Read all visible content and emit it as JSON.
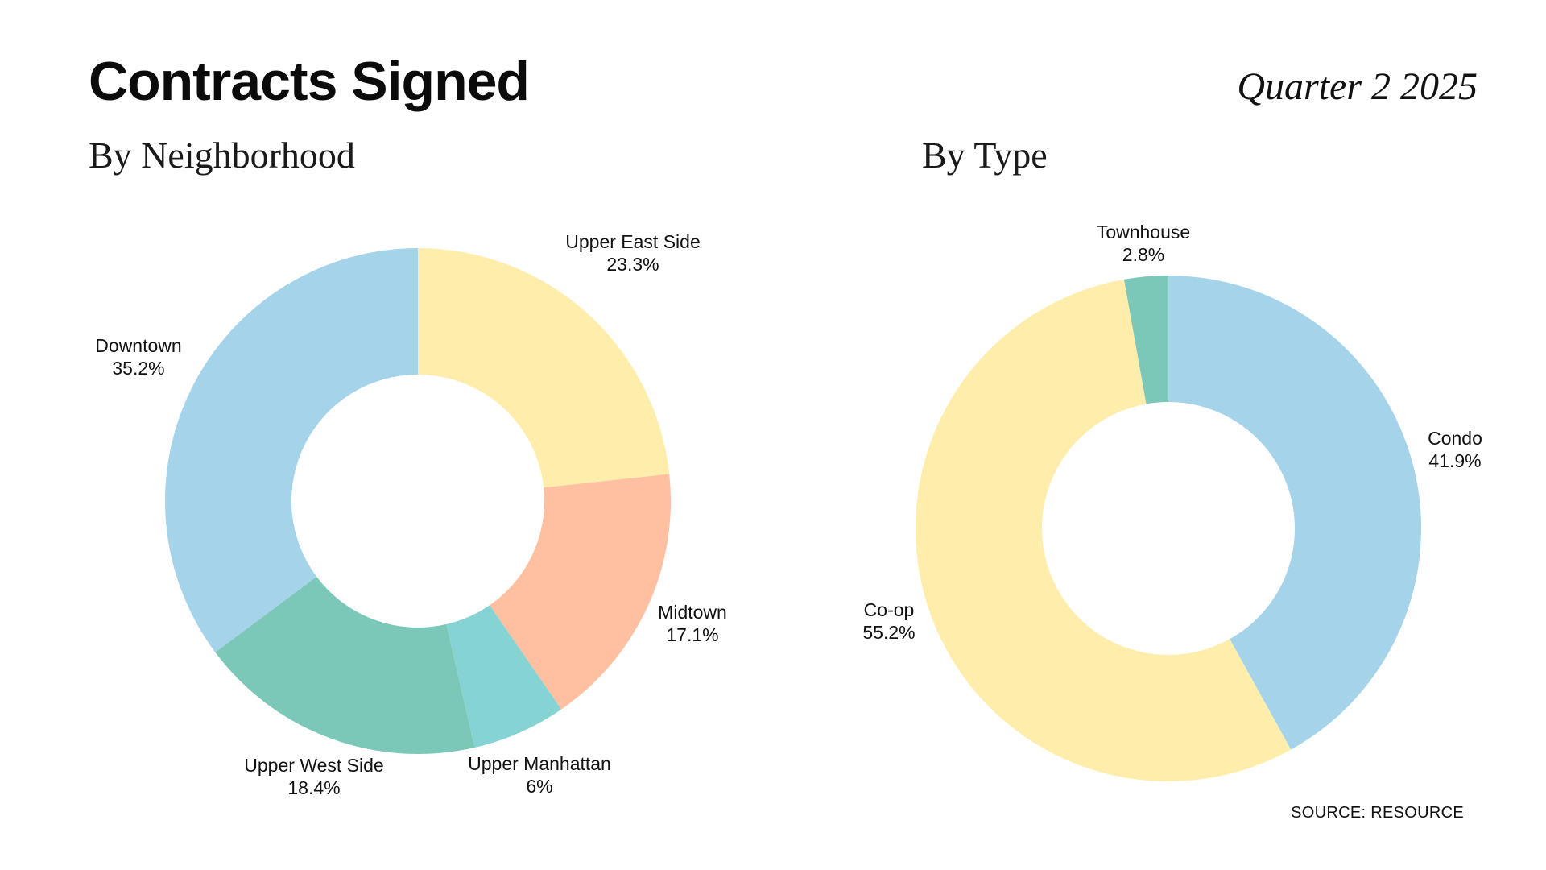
{
  "header": {
    "title": "Contracts Signed",
    "period": "Quarter 2 2025"
  },
  "footer": {
    "source": "SOURCE: RESOURCE"
  },
  "chart_data": [
    {
      "type": "pie",
      "subtitle": "By Neighborhood",
      "donut": true,
      "start": "top, clockwise",
      "slices": [
        {
          "label": "Upper East Side",
          "value": 23.3,
          "value_label": "23.3%",
          "color": "#FFEEAB"
        },
        {
          "label": "Midtown",
          "value": 17.1,
          "value_label": "17.1%",
          "color": "#FFBFA1"
        },
        {
          "label": "Upper Manhattan",
          "value": 6,
          "value_label": "6%",
          "color": "#86D3D3"
        },
        {
          "label": "Upper West Side",
          "value": 18.4,
          "value_label": "18.4%",
          "color": "#7BC8B8"
        },
        {
          "label": "Downtown",
          "value": 35.2,
          "value_label": "35.2%",
          "color": "#A5D4EA"
        }
      ]
    },
    {
      "type": "pie",
      "subtitle": "By Type",
      "donut": true,
      "start": "top, clockwise",
      "slices": [
        {
          "label": "Condo",
          "value": 41.9,
          "value_label": "41.9%",
          "color": "#A5D4EA"
        },
        {
          "label": "Co-op",
          "value": 55.2,
          "value_label": "55.2%",
          "color": "#FFEEAB"
        },
        {
          "label": "Townhouse",
          "value": 2.8,
          "value_label": "2.8%",
          "color": "#7BC8B8"
        }
      ]
    }
  ]
}
